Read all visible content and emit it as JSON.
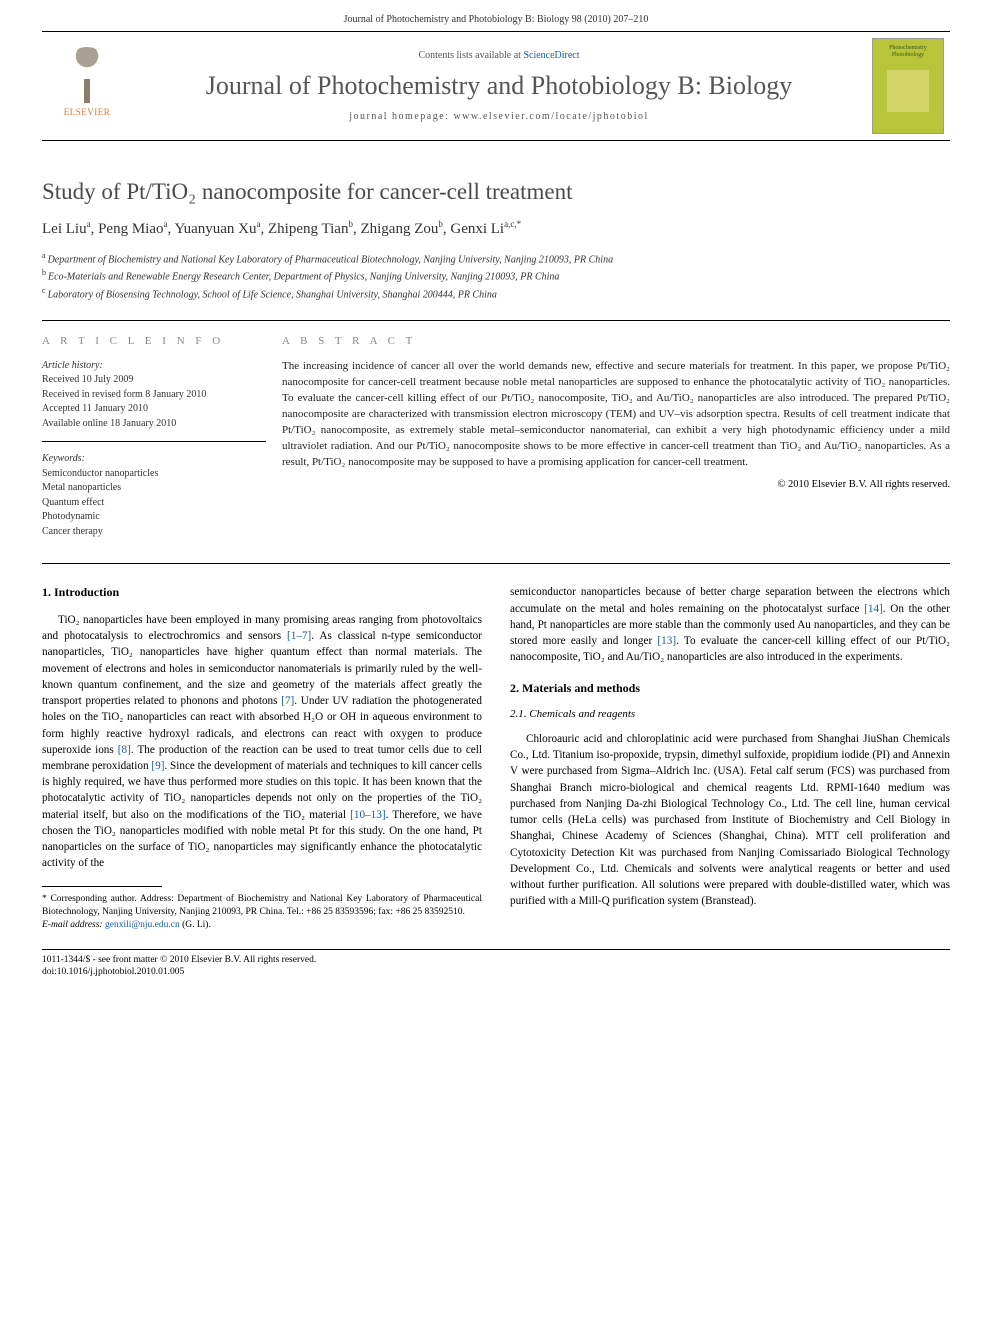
{
  "header": {
    "running": "Journal of Photochemistry and Photobiology B: Biology 98 (2010) 207–210",
    "contents_prefix": "Contents lists available at ",
    "contents_link": "ScienceDirect",
    "journal_name": "Journal of Photochemistry and Photobiology B: Biology",
    "homepage_prefix": "journal homepage: ",
    "homepage_url": "www.elsevier.com/locate/jphotobiol",
    "elsevier_label": "ELSEVIER",
    "cover_title": "Photochemistry Photobiology"
  },
  "article": {
    "title": "Study of Pt/TiO₂ nanocomposite for cancer-cell treatment",
    "authors_html": "Lei Liu<sup>a</sup>, Peng Miao<sup>a</sup>, Yuanyuan Xu<sup>a</sup>, Zhipeng Tian<sup>b</sup>, Zhigang Zou<sup>b</sup>, Genxi Li<sup>a,c,*</sup>",
    "affiliations": [
      {
        "sup": "a",
        "text": "Department of Biochemistry and National Key Laboratory of Pharmaceutical Biotechnology, Nanjing University, Nanjing 210093, PR China"
      },
      {
        "sup": "b",
        "text": "Eco-Materials and Renewable Energy Research Center, Department of Physics, Nanjing University, Nanjing 210093, PR China"
      },
      {
        "sup": "c",
        "text": "Laboratory of Biosensing Technology, School of Life Science, Shanghai University, Shanghai 200444, PR China"
      }
    ]
  },
  "info": {
    "heading": "A R T I C L E   I N F O",
    "history_label": "Article history:",
    "history": [
      "Received 10 July 2009",
      "Received in revised form 8 January 2010",
      "Accepted 11 January 2010",
      "Available online 18 January 2010"
    ],
    "keywords_label": "Keywords:",
    "keywords": [
      "Semiconductor nanoparticles",
      "Metal nanoparticles",
      "Quantum effect",
      "Photodynamic",
      "Cancer therapy"
    ]
  },
  "abstract": {
    "heading": "A B S T R A C T",
    "text": "The increasing incidence of cancer all over the world demands new, effective and secure materials for treatment. In this paper, we propose Pt/TiO₂ nanocomposite for cancer-cell treatment because noble metal nanoparticles are supposed to enhance the photocatalytic activity of TiO₂ nanoparticles. To evaluate the cancer-cell killing effect of our Pt/TiO₂ nanocomposite, TiO₂ and Au/TiO₂ nanoparticles are also introduced. The prepared Pt/TiO₂ nanocomposite are characterized with transmission electron microscopy (TEM) and UV–vis adsorption spectra. Results of cell treatment indicate that Pt/TiO₂ nanocomposite, as extremely stable metal–semiconductor nanomaterial, can exhibit a very high photodynamic efficiency under a mild ultraviolet radiation. And our Pt/TiO₂ nanocomposite shows to be more effective in cancer-cell treatment than TiO₂ and Au/TiO₂ nanoparticles. As a result, Pt/TiO₂ nanocomposite may be supposed to have a promising application for cancer-cell treatment.",
    "copyright": "© 2010 Elsevier B.V. All rights reserved."
  },
  "body": {
    "intro_heading": "1. Introduction",
    "intro_p1": "TiO₂ nanoparticles have been employed in many promising areas ranging from photovoltaics and photocatalysis to electrochromics and sensors [1–7]. As classical n-type semiconductor nanoparticles, TiO₂ nanoparticles have higher quantum effect than normal materials. The movement of electrons and holes in semiconductor nanomaterials is primarily ruled by the well-known quantum confinement, and the size and geometry of the materials affect greatly the transport properties related to phonons and photons [7]. Under UV radiation the photogenerated holes on the TiO₂ nanoparticles can react with absorbed H₂O or OH in aqueous environment to form highly reactive hydroxyl radicals, and electrons can react with oxygen to produce superoxide ions [8]. The production of the reaction can be used to treat tumor cells due to cell membrane peroxidation [9]. Since the development of materials and techniques to kill cancer cells is highly required, we have thus performed more studies on this topic. It has been known that the photocatalytic activity of TiO₂ nanoparticles depends not only on the properties of the TiO₂ material itself, but also on the modifications of the TiO₂ material [10–13]. Therefore, we have chosen the TiO₂ nanoparticles modified with noble metal Pt for this study. On the one hand, Pt nanoparticles on the surface of TiO₂ nanoparticles may significantly enhance the photocatalytic activity of the",
    "intro_p2": "semiconductor nanoparticles because of better charge separation between the electrons which accumulate on the metal and holes remaining on the photocatalyst surface [14]. On the other hand, Pt nanoparticles are more stable than the commonly used Au nanoparticles, and they can be stored more easily and longer [13]. To evaluate the cancer-cell killing effect of our Pt/TiO₂ nanocomposite, TiO₂ and Au/TiO₂ nanoparticles are also introduced in the experiments.",
    "mm_heading": "2. Materials and methods",
    "chem_heading": "2.1. Chemicals and reagents",
    "chem_p": "Chloroauric acid and chloroplatinic acid were purchased from Shanghai JiuShan Chemicals Co., Ltd. Titanium iso-propoxide, trypsin, dimethyl sulfoxide, propidium iodide (PI) and Annexin V were purchased from Sigma–Aldrich Inc. (USA). Fetal calf serum (FCS) was purchased from Shanghai Branch micro-biological and chemical reagents Ltd. RPMI-1640 medium was purchased from Nanjing Da-zhi Biological Technology Co., Ltd. The cell line, human cervical tumor cells (HeLa cells) was purchased from Institute of Biochemistry and Cell Biology in Shanghai, Chinese Academy of Sciences (Shanghai, China). MTT cell proliferation and Cytotoxicity Detection Kit was purchased from Nanjing Comissariado Biological Technology Development Co., Ltd. Chemicals and solvents were analytical reagents or better and used without further purification. All solutions were prepared with double-distilled water, which was purified with a Mill-Q purification system (Branstead)."
  },
  "footnote": {
    "corr": "* Corresponding author. Address: Department of Biochemistry and National Key Laboratory of Pharmaceutical Biotechnology, Nanjing University, Nanjing 210093, PR China. Tel.: +86 25 83593596; fax: +86 25 83592510.",
    "email_label": "E-mail address:",
    "email": "genxili@nju.edu.cn",
    "email_who": "(G. Li)."
  },
  "footer": {
    "line1": "1011-1344/$ - see front matter © 2010 Elsevier B.V. All rights reserved.",
    "line2": "doi:10.1016/j.jphotobiol.2010.01.005"
  },
  "colors": {
    "link": "#1a5aa8",
    "orange": "#e8762d",
    "cover_bg": "#b8c43a",
    "text_gray": "#4a4a4a"
  }
}
